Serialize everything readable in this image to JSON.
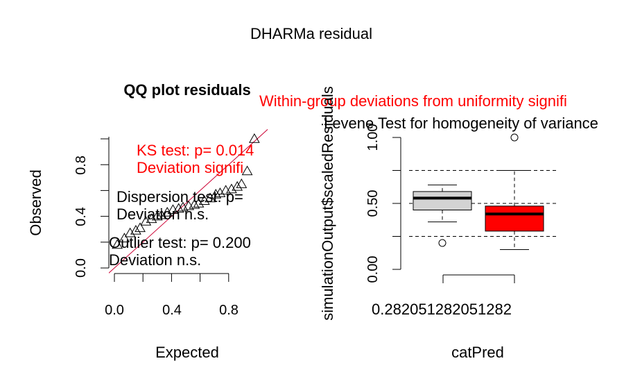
{
  "page_title": "DHARMa residual",
  "colors": {
    "annotation": "#ff0000",
    "identity_line": "#cc0033",
    "box_group1": "#d3d3d3",
    "box_group2": "#ff0000",
    "ink": "#000000"
  },
  "chart_data": [
    {
      "type": "scatter",
      "title": "QQ plot residuals",
      "xlabel": "Expected",
      "ylabel": "Observed",
      "xlim": [
        0,
        1
      ],
      "ylim": [
        0,
        1
      ],
      "x_ticks": [
        "0.0",
        "0.4",
        "0.8"
      ],
      "y_ticks": [
        "0.0",
        "0.4",
        "0.8"
      ],
      "marker": "open-triangle",
      "reference_line": "identity (y = x)",
      "annotations": {
        "ks_test": "KS test: p= 0.014",
        "ks_deviation": "Deviation  signifi",
        "dispersion_test": "Dispersion test: p=",
        "dispersion_deviation": "Deviation  n.s.",
        "outlier_test": "Outlier test: p= 0.200",
        "outlier_deviation": "Deviation  n.s."
      },
      "points": [
        [
          0.02,
          0.18
        ],
        [
          0.07,
          0.23
        ],
        [
          0.11,
          0.27
        ],
        [
          0.15,
          0.29
        ],
        [
          0.18,
          0.31
        ],
        [
          0.22,
          0.36
        ],
        [
          0.26,
          0.38
        ],
        [
          0.3,
          0.4
        ],
        [
          0.33,
          0.41
        ],
        [
          0.37,
          0.43
        ],
        [
          0.41,
          0.45
        ],
        [
          0.45,
          0.46
        ],
        [
          0.48,
          0.47
        ],
        [
          0.52,
          0.48
        ],
        [
          0.56,
          0.49
        ],
        [
          0.59,
          0.5
        ],
        [
          0.63,
          0.52
        ],
        [
          0.67,
          0.54
        ],
        [
          0.71,
          0.57
        ],
        [
          0.74,
          0.58
        ],
        [
          0.78,
          0.6
        ],
        [
          0.82,
          0.61
        ],
        [
          0.86,
          0.63
        ],
        [
          0.89,
          0.65
        ],
        [
          0.93,
          0.75
        ],
        [
          0.98,
          1.0
        ]
      ]
    },
    {
      "type": "box",
      "title": "Levene Test for homogeneity of variance",
      "title_annotation": "Within-group deviations from uniformity signifi",
      "xlabel": "catPred",
      "ylabel": "simulationOutput$scaledResiduals",
      "x_tick_label": "0.282051282051282",
      "ylim": [
        0,
        1
      ],
      "y_ticks": [
        "0.00",
        "0.50",
        "1.00"
      ],
      "reference_lines": [
        0.25,
        0.5,
        0.75
      ],
      "groups": [
        {
          "fill": "#d3d3d3",
          "whisker_low": 0.36,
          "q1": 0.45,
          "median": 0.54,
          "q3": 0.59,
          "whisker_high": 0.64,
          "outliers": [
            0.2
          ]
        },
        {
          "fill": "#ff0000",
          "whisker_low": 0.15,
          "q1": 0.29,
          "median": 0.42,
          "q3": 0.48,
          "whisker_high": 0.75,
          "outliers": [
            1.0
          ]
        }
      ]
    }
  ]
}
